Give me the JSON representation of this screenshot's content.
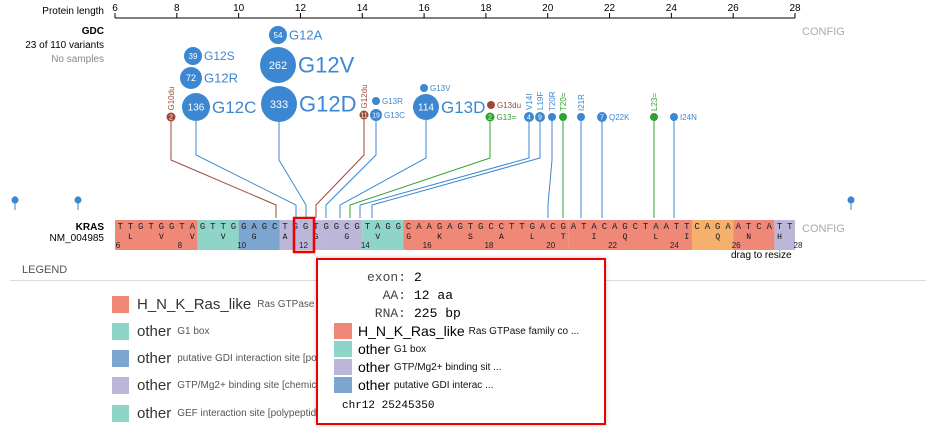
{
  "ruler": {
    "label": "Protein length",
    "ticks": [
      6,
      8,
      10,
      12,
      14,
      16,
      18,
      20,
      22,
      24,
      26,
      28
    ]
  },
  "gdc": {
    "title": "GDC",
    "variant_count": "23 of 110 variants",
    "samples": "No samples",
    "config": "CONFIG"
  },
  "mutations": [
    {
      "label": "G12A",
      "count": "54",
      "color": "#3b87d1"
    },
    {
      "label": "G12S",
      "count": "39",
      "color": "#3b87d1"
    },
    {
      "label": "G12V",
      "count": "262",
      "color": "#3b87d1"
    },
    {
      "label": "G12R",
      "count": "72",
      "color": "#3b87d1"
    },
    {
      "label": "G12C",
      "count": "136",
      "color": "#3b87d1"
    },
    {
      "label": "G12D",
      "count": "333",
      "color": "#3b87d1"
    },
    {
      "label": "G13D",
      "count": "114",
      "color": "#3b87d1"
    },
    {
      "label": "G10du",
      "count": "2",
      "color": "#9b4a3a"
    },
    {
      "label": "G12du",
      "count": "11",
      "color": "#9b4a3a"
    },
    {
      "label": "G13R",
      "count": "",
      "color": "#3b87d1"
    },
    {
      "label": "G13C",
      "count": "19",
      "color": "#3b87d1"
    },
    {
      "label": "G13V",
      "count": "",
      "color": "#3b87d1"
    },
    {
      "label": "G13du",
      "count": "",
      "color": "#9b4a3a"
    },
    {
      "label": "G13=",
      "count": "2",
      "color": "#2ea22e"
    },
    {
      "label": "V14I",
      "count": "4",
      "color": "#3b87d1"
    },
    {
      "label": "L19F",
      "count": "9",
      "color": "#3b87d1"
    },
    {
      "label": "T20R",
      "count": "",
      "color": "#3b87d1"
    },
    {
      "label": "T20=",
      "count": "",
      "color": "#2ea22e"
    },
    {
      "label": "I21R",
      "count": "",
      "color": "#3b87d1"
    },
    {
      "label": "Q22K",
      "count": "7",
      "color": "#3b87d1"
    },
    {
      "label": "L23=",
      "count": "",
      "color": "#2ea22e"
    },
    {
      "label": "I24N",
      "count": "",
      "color": "#3b87d1"
    }
  ],
  "gene": {
    "name": "KRAS",
    "transcript": "NM_004985",
    "config": "CONFIG",
    "drag_hint": "drag to resize",
    "dna": "TTGTGGTAGTTGGAGCTGGTGGCGTAGGCAAGAGTGCCTTGACGATACAGCTAATTCAGAATCATT",
    "aa": [
      "L",
      "V",
      "V",
      "V",
      "G",
      "A",
      "G",
      "G",
      "V",
      "G",
      "K",
      "S",
      "A",
      "L",
      "T",
      "I",
      "Q",
      "L",
      "I",
      "Q",
      "N",
      "H"
    ],
    "aa_ticks": [
      "6",
      "8",
      "10",
      "12",
      "14",
      "16",
      "18",
      "20",
      "22",
      "24",
      "26",
      "28"
    ]
  },
  "legend": {
    "title": "LEGEND",
    "items": [
      {
        "name": "H_N_K_Ras_like",
        "desc": "Ras GTPase f",
        "color": "#f08878"
      },
      {
        "name": "other",
        "desc": "G1 box",
        "color": "#8ed4c8"
      },
      {
        "name": "other",
        "desc": "putative GDI interaction site [po",
        "color": "#7ca6cf"
      },
      {
        "name": "other",
        "desc": "GTP/Mg2+ binding site [chemic",
        "color": "#bcb6d8"
      },
      {
        "name": "other",
        "desc": "GEF interaction site [polypeptide binding]",
        "color": "#8ed4c8"
      }
    ]
  },
  "tooltip": {
    "exon_label": "exon:",
    "exon": "2",
    "aa_label": "AA:",
    "aa": "12 aa",
    "rna_label": "RNA:",
    "rna": "225 bp",
    "domains": [
      {
        "name": "H_N_K_Ras_like",
        "desc": "Ras GTPase family co ...",
        "color": "#f08878"
      },
      {
        "name": "other",
        "desc": "G1 box",
        "color": "#8ed4c8"
      },
      {
        "name": "other",
        "desc": "GTP/Mg2+ binding sit ...",
        "color": "#bcb6d8"
      },
      {
        "name": "other",
        "desc": "putative GDI interac ...",
        "color": "#7ca6cf"
      }
    ],
    "position": "chr12 25245350"
  }
}
